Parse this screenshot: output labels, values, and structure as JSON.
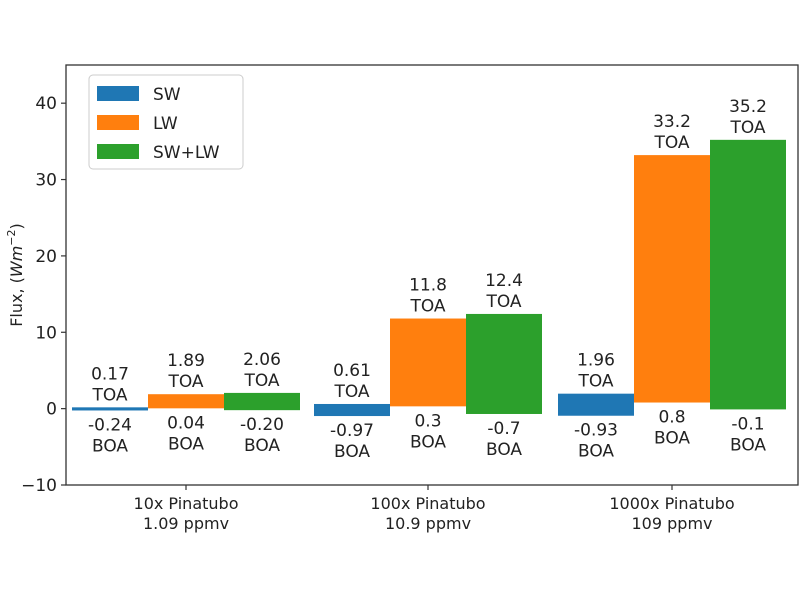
{
  "chart_data": {
    "type": "bar",
    "title": "",
    "xlabel": "",
    "ylabel": "Flux, (Wm^-2)",
    "ylabel_parts": {
      "prefix": "Flux, (",
      "italic": "Wm",
      "sup": "−2",
      "suffix": ")"
    },
    "ylim": [
      -10,
      45
    ],
    "yticks": [
      -10,
      0,
      10,
      20,
      30,
      40
    ],
    "ytick_labels": [
      "−10",
      "0",
      "10",
      "20",
      "30",
      "40"
    ],
    "grid": false,
    "legend_position": "top-left",
    "categories": [
      {
        "line1": "10x Pinatubo",
        "line2": "1.09 ppmv"
      },
      {
        "line1": "100x Pinatubo",
        "line2": "10.9 ppmv"
      },
      {
        "line1": "1000x Pinatubo",
        "line2": "109 ppmv"
      }
    ],
    "series": [
      {
        "name": "SW",
        "color": "#1f77b4",
        "toa": [
          0.17,
          0.61,
          1.96
        ],
        "boa": [
          -0.24,
          -0.97,
          -0.93
        ],
        "toa_labels": [
          "0.17",
          "0.61",
          "1.96"
        ],
        "boa_labels": [
          "-0.24",
          "-0.97",
          "-0.93"
        ]
      },
      {
        "name": "LW",
        "color": "#ff7f0e",
        "toa": [
          1.89,
          11.8,
          33.2
        ],
        "boa": [
          0.04,
          0.3,
          0.8
        ],
        "toa_labels": [
          "1.89",
          "11.8",
          "33.2"
        ],
        "boa_labels": [
          "0.04",
          "0.3",
          "0.8"
        ]
      },
      {
        "name": "SW+LW",
        "color": "#2ca02c",
        "toa": [
          2.06,
          12.4,
          35.2
        ],
        "boa": [
          -0.2,
          -0.7,
          -0.1
        ],
        "toa_labels": [
          "2.06",
          "12.4",
          "35.2"
        ],
        "boa_labels": [
          "-0.20",
          "-0.7",
          "-0.1"
        ]
      }
    ],
    "toa_suffix": "TOA",
    "boa_suffix": "BOA"
  }
}
